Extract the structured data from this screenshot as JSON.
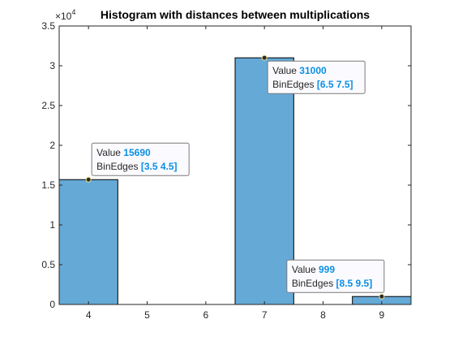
{
  "chart_data": {
    "type": "bar",
    "title": "Histogram with distances between multiplications",
    "xlabel": "",
    "ylabel": "",
    "bin_edges": [
      3.5,
      4.5,
      5.5,
      6.5,
      7.5,
      8.5,
      9.5
    ],
    "values": [
      15690,
      0,
      0,
      31000,
      0,
      999
    ],
    "xlim": [
      3.5,
      9.5
    ],
    "ylim": [
      0,
      35000
    ],
    "x_ticks": [
      4,
      5,
      6,
      7,
      8,
      9
    ],
    "x_tick_labels": [
      "4",
      "5",
      "6",
      "7",
      "8",
      "9"
    ],
    "y_ticks": [
      0,
      5000,
      10000,
      15000,
      20000,
      25000,
      30000,
      35000
    ],
    "y_tick_labels": [
      "0",
      "0.5",
      "1",
      "1.5",
      "2",
      "2.5",
      "3",
      "3.5"
    ],
    "y_exponent_label": "×10",
    "y_exponent_power": "4",
    "grid": false,
    "bar_color": "#65a9d7",
    "bar_edge_color": "#000000",
    "datatips": [
      {
        "bin": 0,
        "value_label": "Value",
        "value": "15690",
        "edges_label": "BinEdges",
        "edges": "[3.5 4.5]"
      },
      {
        "bin": 3,
        "value_label": "Value",
        "value": "31000",
        "edges_label": "BinEdges",
        "edges": "[6.5 7.5]"
      },
      {
        "bin": 5,
        "value_label": "Value",
        "value": "999",
        "edges_label": "BinEdges",
        "edges": "[8.5 9.5]"
      }
    ]
  }
}
